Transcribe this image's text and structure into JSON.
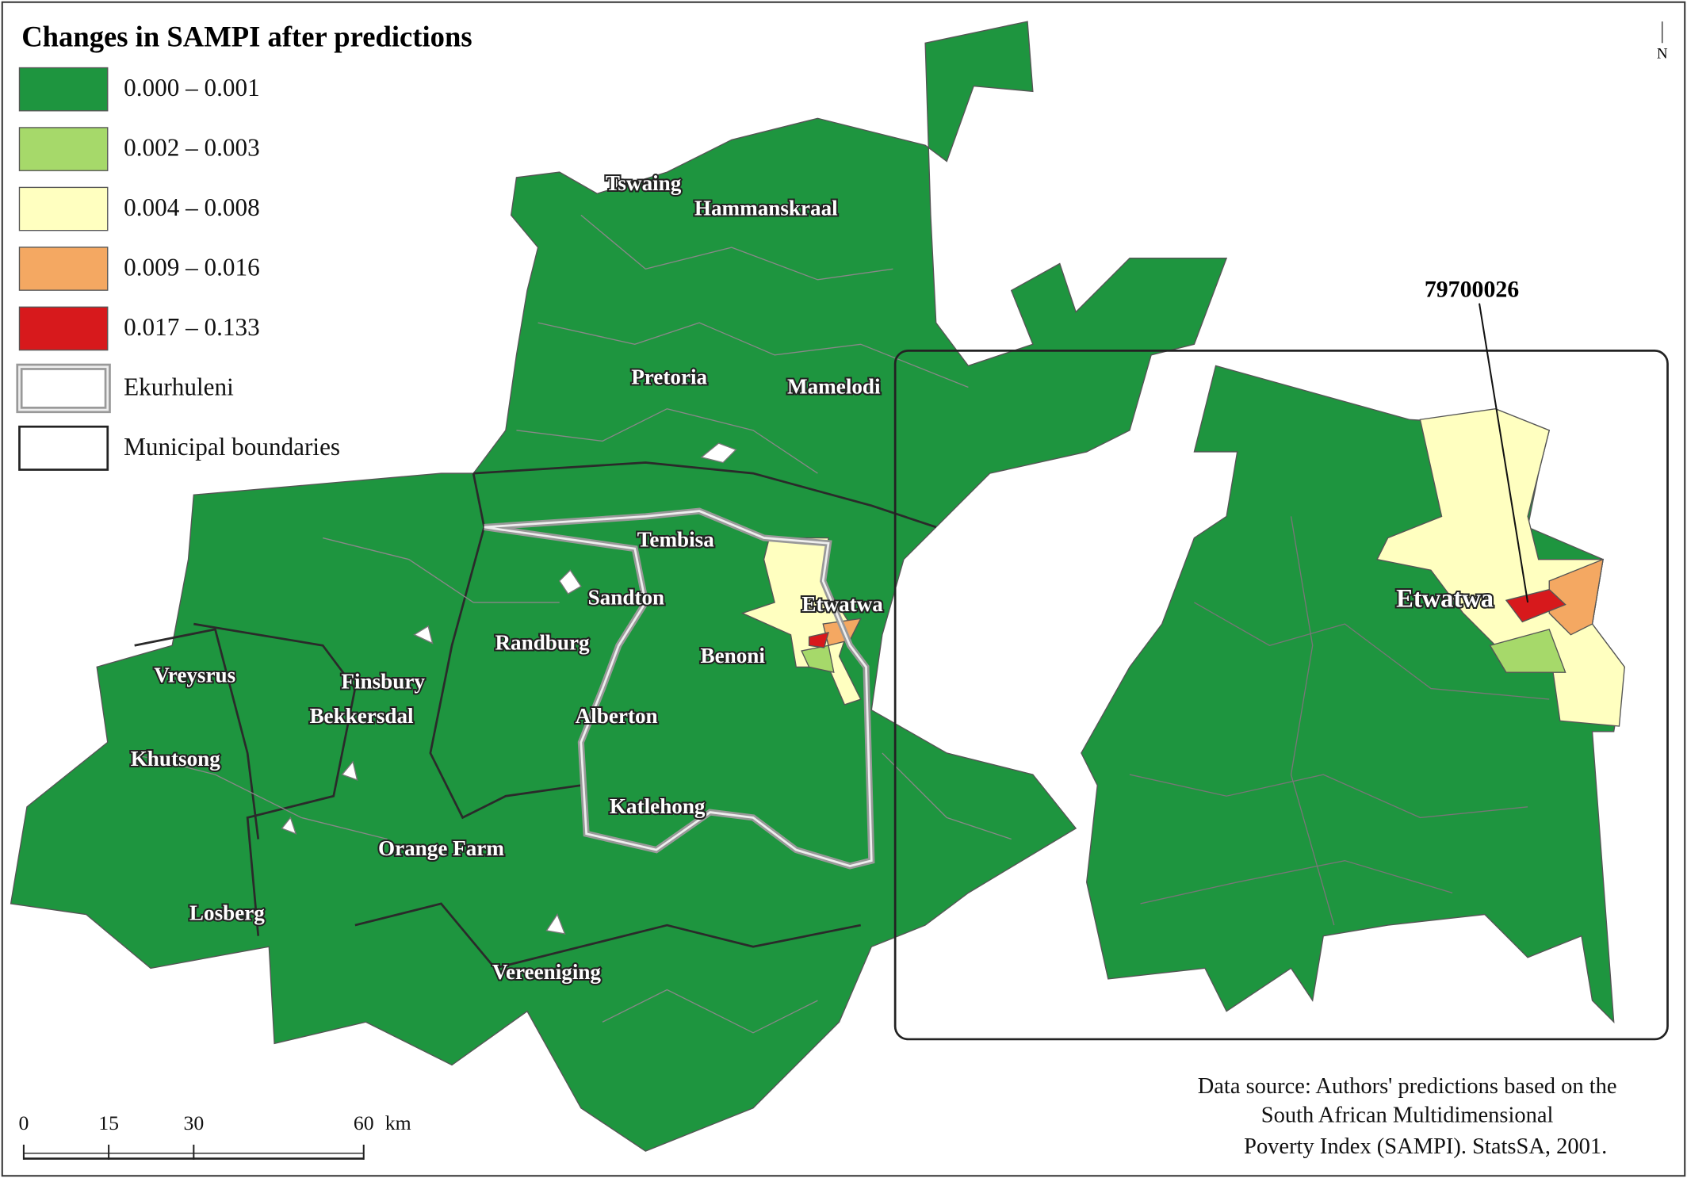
{
  "title": "Changes in SAMPI after predictions",
  "legend": {
    "items": [
      {
        "label": "0.000 – 0.001",
        "color": "#1e953f"
      },
      {
        "label": "0.002 – 0.003",
        "color": "#a6d96a"
      },
      {
        "label": "0.004 – 0.008",
        "color": "#ffffc0"
      },
      {
        "label": "0.009 – 0.016",
        "color": "#f4a862"
      },
      {
        "label": "0.017 – 0.133",
        "color": "#d7191c"
      },
      {
        "label": "Ekurhuleni"
      },
      {
        "label": "Municipal boundaries"
      }
    ]
  },
  "places": [
    "Tswaing",
    "Hammanskraal",
    "Pretoria",
    "Mamelodi",
    "Tembisa",
    "Sandton",
    "Etwatwa",
    "Randburg",
    "Benoni",
    "Finsbury",
    "Vreysrus",
    "Bekkersdal",
    "Alberton",
    "Khutsong",
    "Katlehong",
    "Orange Farm",
    "Losberg",
    "Vereeniging"
  ],
  "inset": {
    "area_label": "Etwatwa",
    "callout": "79700026"
  },
  "north": "N",
  "scale": {
    "ticks": [
      0,
      15,
      30,
      60
    ],
    "max": 60,
    "unit": "km"
  },
  "source": [
    "Data source: Authors' predictions based on the",
    "South African Multidimensional",
    "Poverty Index (SAMPI). StatsSA, 2001."
  ]
}
